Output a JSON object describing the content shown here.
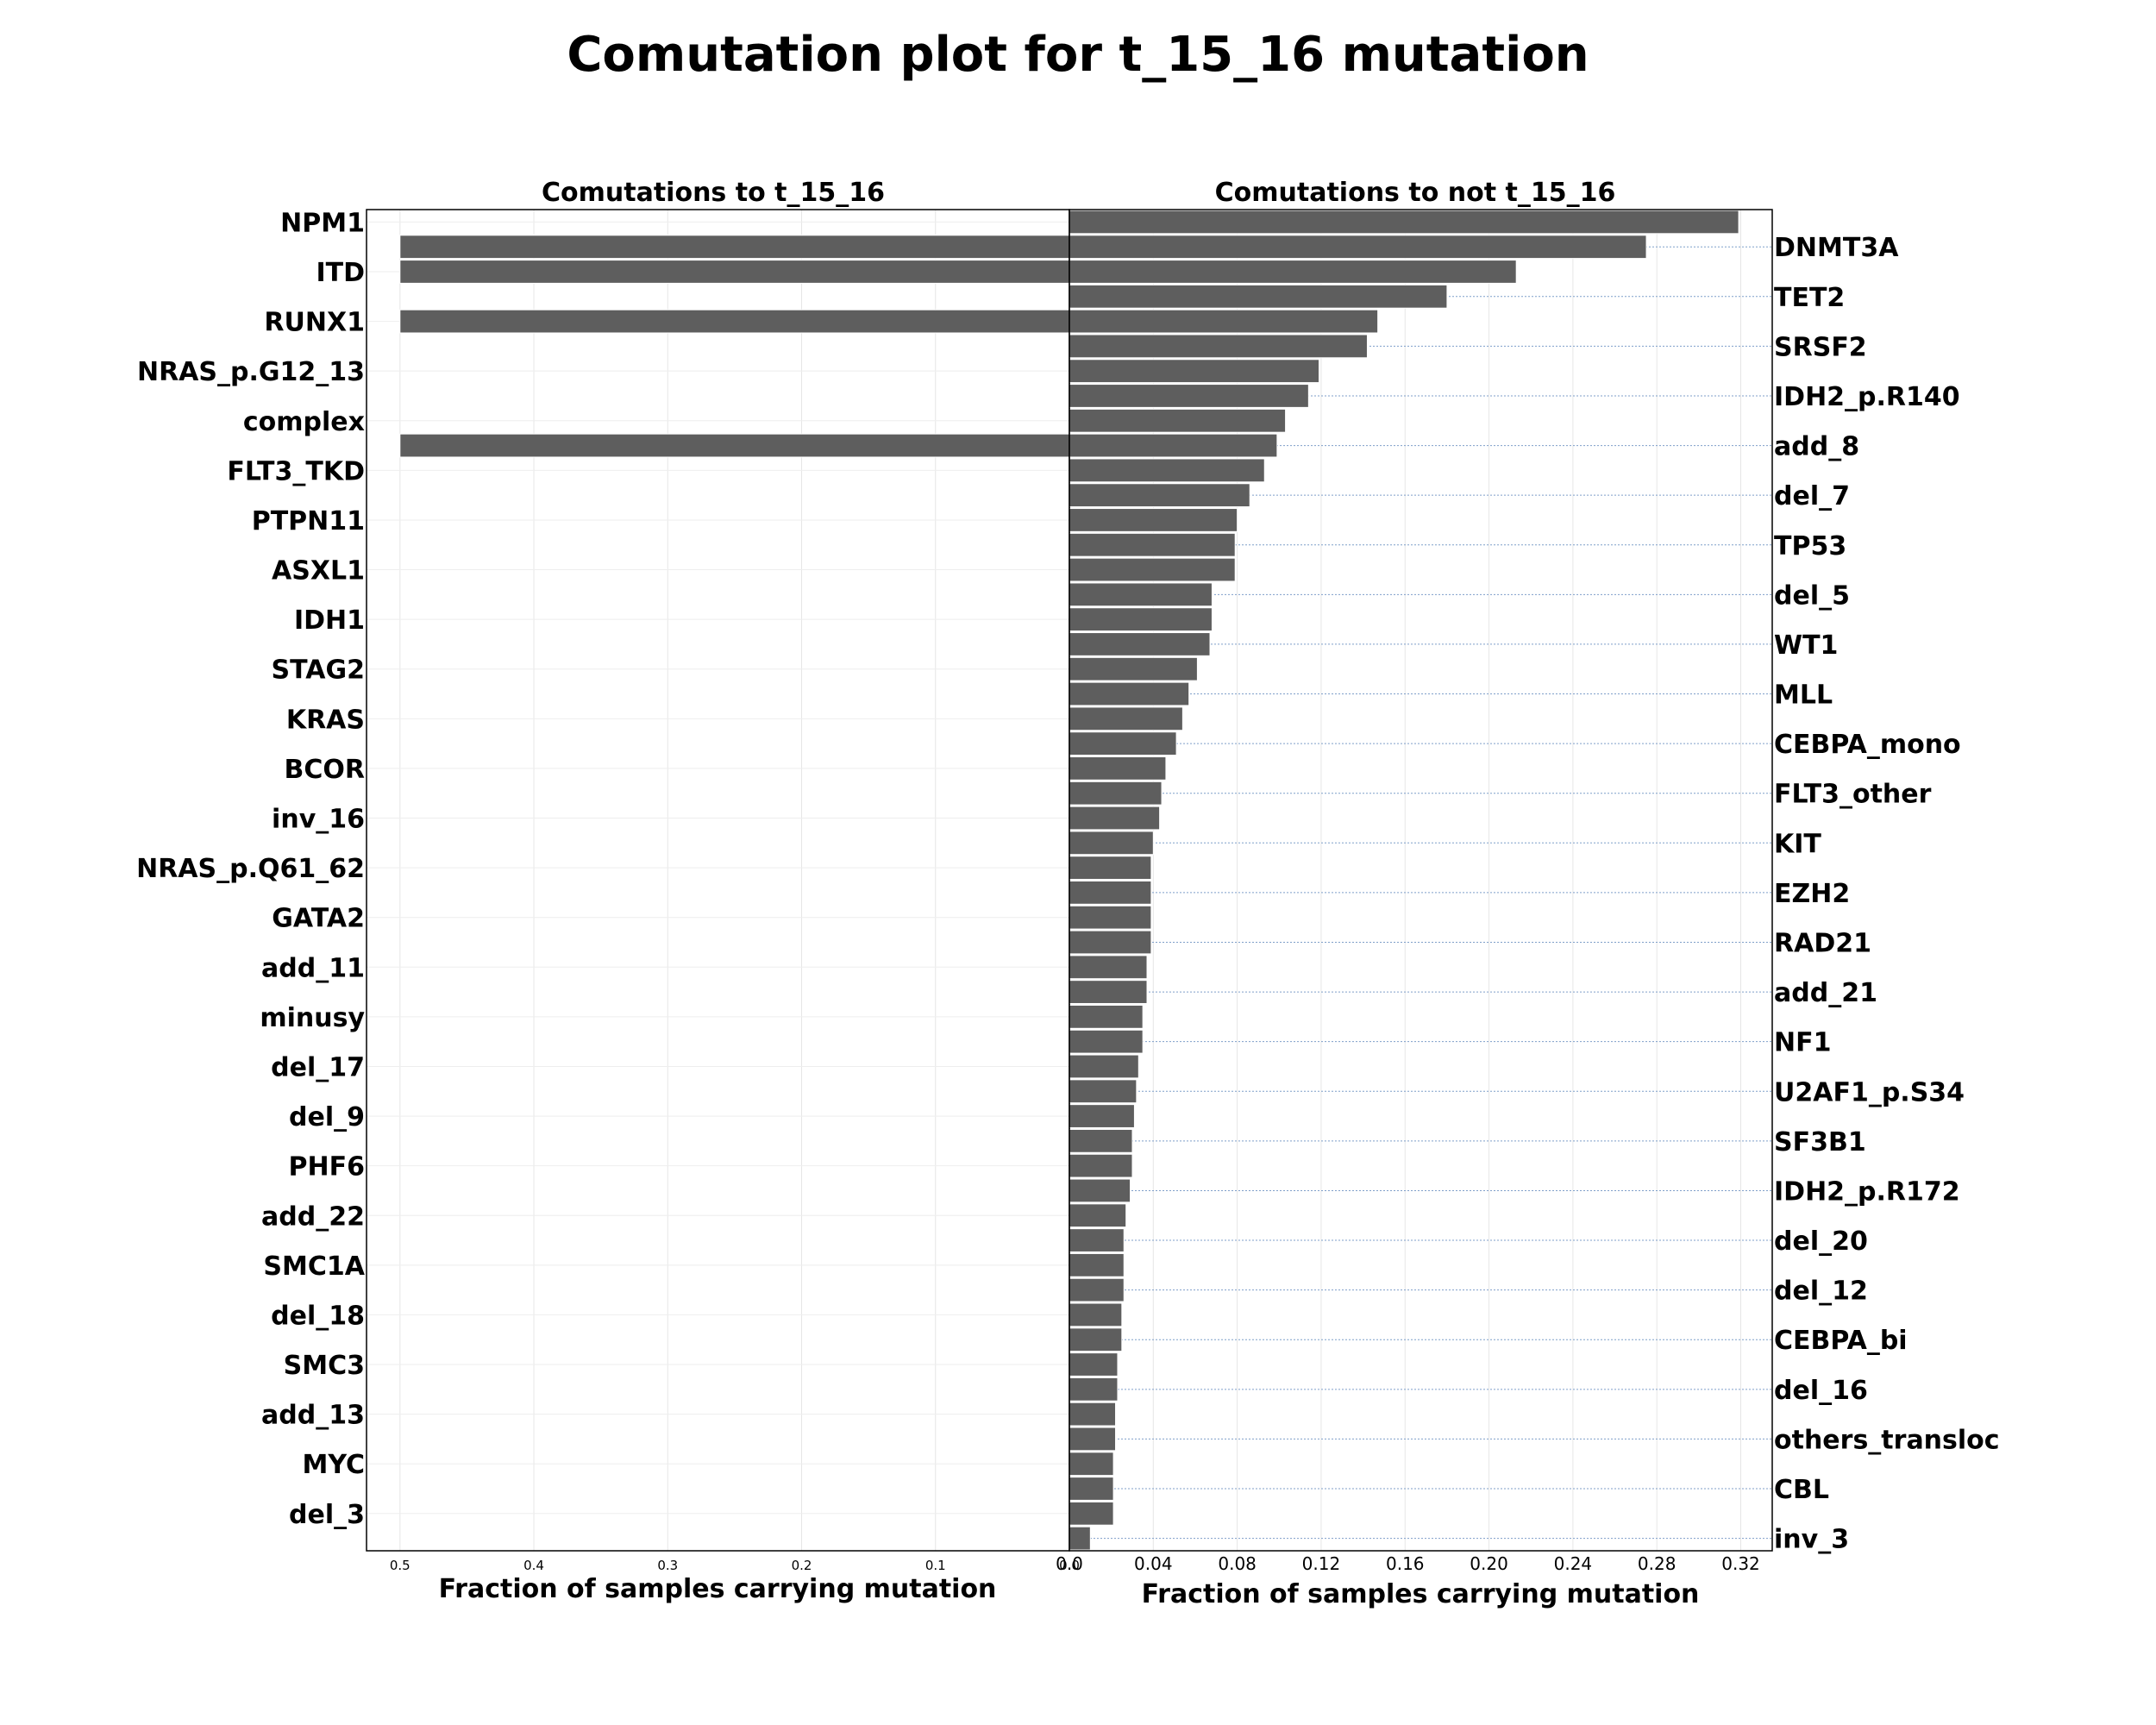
{
  "chart_data": {
    "type": "bar",
    "title": "Comutation plot for t_15_16 mutation",
    "panels": [
      {
        "subtitle": "Comutations to t_15_16",
        "xlabel": "Fraction of samples carrying mutation",
        "orientation": "horizontal",
        "x_inverted": true,
        "xlim": [
          0,
          0.525
        ],
        "xticks": [
          0.5,
          0.4,
          0.3,
          0.2,
          0.1,
          0.0
        ],
        "xtick_labels": [
          "0.5",
          "0.4",
          "0.3",
          "0.2",
          "0.1",
          "0.0"
        ],
        "tick_labels": [
          "NPM1",
          "ITD",
          "RUNX1",
          "NRAS_p.G12_13",
          "complex",
          "FLT3_TKD",
          "PTPN11",
          "ASXL1",
          "IDH1",
          "STAG2",
          "KRAS",
          "BCOR",
          "inv_16",
          "NRAS_p.Q61_62",
          "GATA2",
          "add_11",
          "minusy",
          "del_17",
          "del_9",
          "PHF6",
          "add_22",
          "SMC1A",
          "del_18",
          "SMC3",
          "add_13",
          "MYC",
          "del_3"
        ],
        "categories": [
          "NPM1",
          "DNMT3A",
          "ITD",
          "TET2",
          "RUNX1",
          "SRSF2",
          "NRAS_p.G12_13",
          "IDH2_p.R140",
          "complex",
          "add_8",
          "FLT3_TKD",
          "del_7",
          "PTPN11",
          "TP53",
          "ASXL1",
          "del_5",
          "IDH1",
          "WT1",
          "STAG2",
          "MLL",
          "KRAS",
          "CEBPA_mono",
          "BCOR",
          "FLT3_other",
          "inv_16",
          "KIT",
          "NRAS_p.Q61_62",
          "EZH2",
          "GATA2",
          "RAD21",
          "add_11",
          "add_21",
          "minusy",
          "NF1",
          "del_17",
          "U2AF1_p.S34",
          "del_9",
          "SF3B1",
          "PHF6",
          "IDH2_p.R172",
          "add_22",
          "del_20",
          "SMC1A",
          "del_12",
          "del_18",
          "CEBPA_bi",
          "SMC3",
          "del_16",
          "add_13",
          "others_transloc",
          "MYC",
          "CBL",
          "del_3",
          "inv_3"
        ],
        "values": [
          0,
          0.5,
          0.5,
          0,
          0.5,
          0,
          0,
          0,
          0,
          0.5,
          0,
          0,
          0,
          0,
          0,
          0,
          0,
          0,
          0,
          0,
          0,
          0,
          0,
          0,
          0,
          0,
          0,
          0,
          0,
          0,
          0,
          0,
          0,
          0,
          0,
          0,
          0,
          0,
          0,
          0,
          0,
          0,
          0,
          0,
          0,
          0,
          0,
          0,
          0,
          0,
          0,
          0,
          0,
          0
        ]
      },
      {
        "subtitle": "Comutations to not t_15_16",
        "xlabel": "Fraction of samples carrying mutation",
        "orientation": "horizontal",
        "xlim": [
          0,
          0.335
        ],
        "xticks": [
          0.0,
          0.04,
          0.08,
          0.12,
          0.16,
          0.2,
          0.24,
          0.28,
          0.32
        ],
        "xtick_labels": [
          "0.0",
          "0.04",
          "0.08",
          "0.12",
          "0.16",
          "0.20",
          "0.24",
          "0.28",
          "0.32"
        ],
        "tick_labels": [
          "DNMT3A",
          "TET2",
          "SRSF2",
          "IDH2_p.R140",
          "add_8",
          "del_7",
          "TP53",
          "del_5",
          "WT1",
          "MLL",
          "CEBPA_mono",
          "FLT3_other",
          "KIT",
          "EZH2",
          "RAD21",
          "add_21",
          "NF1",
          "U2AF1_p.S34",
          "SF3B1",
          "IDH2_p.R172",
          "del_20",
          "del_12",
          "CEBPA_bi",
          "del_16",
          "others_transloc",
          "CBL",
          "inv_3"
        ],
        "categories": [
          "NPM1",
          "DNMT3A",
          "ITD",
          "TET2",
          "RUNX1",
          "SRSF2",
          "NRAS_p.G12_13",
          "IDH2_p.R140",
          "complex",
          "add_8",
          "FLT3_TKD",
          "del_7",
          "PTPN11",
          "TP53",
          "ASXL1",
          "del_5",
          "IDH1",
          "WT1",
          "STAG2",
          "MLL",
          "KRAS",
          "CEBPA_mono",
          "BCOR",
          "FLT3_other",
          "inv_16",
          "KIT",
          "NRAS_p.Q61_62",
          "EZH2",
          "GATA2",
          "RAD21",
          "add_11",
          "add_21",
          "minusy",
          "NF1",
          "del_17",
          "U2AF1_p.S34",
          "del_9",
          "SF3B1",
          "PHF6",
          "IDH2_p.R172",
          "add_22",
          "del_20",
          "SMC1A",
          "del_12",
          "del_18",
          "CEBPA_bi",
          "SMC3",
          "del_16",
          "add_13",
          "others_transloc",
          "MYC",
          "CBL",
          "del_3",
          "inv_3"
        ],
        "values": [
          0.319,
          0.275,
          0.213,
          0.18,
          0.147,
          0.142,
          0.119,
          0.114,
          0.103,
          0.099,
          0.093,
          0.086,
          0.08,
          0.079,
          0.079,
          0.068,
          0.068,
          0.067,
          0.061,
          0.057,
          0.054,
          0.051,
          0.046,
          0.044,
          0.043,
          0.04,
          0.039,
          0.039,
          0.039,
          0.039,
          0.037,
          0.037,
          0.035,
          0.035,
          0.033,
          0.032,
          0.031,
          0.03,
          0.03,
          0.029,
          0.027,
          0.026,
          0.026,
          0.026,
          0.025,
          0.025,
          0.023,
          0.023,
          0.022,
          0.022,
          0.021,
          0.021,
          0.021,
          0.01
        ]
      }
    ],
    "grid": true,
    "colors": {
      "bar": "#5e5e5e",
      "bar_edge": "#ffffff",
      "right_gridline": "#7f9fc9"
    }
  }
}
